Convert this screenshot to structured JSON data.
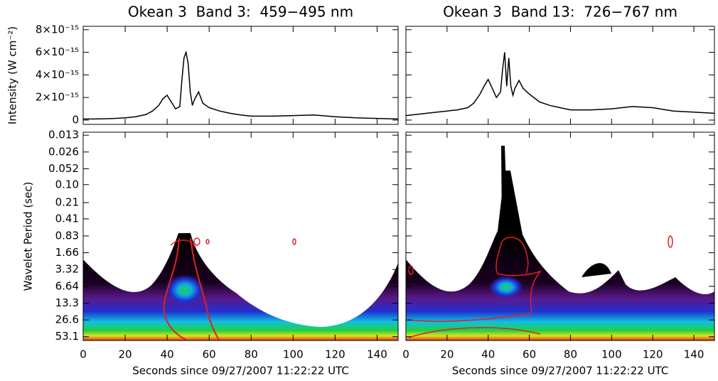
{
  "chart_data": [
    {
      "type": "line",
      "title": "Okean 3  Band 3:  459−495 nm",
      "ylabel": "Intensity (W cm⁻²)",
      "x": [
        0,
        5,
        10,
        15,
        20,
        25,
        30,
        33,
        36,
        38,
        40,
        42,
        44,
        46,
        47,
        48,
        49,
        50,
        51,
        52,
        53,
        55,
        57,
        60,
        65,
        70,
        75,
        80,
        90,
        100,
        110,
        120,
        130,
        140,
        150
      ],
      "values": [
        1e-16,
        1e-16,
        1.2e-16,
        1.5e-16,
        2e-16,
        3e-16,
        5e-16,
        8e-16,
        1.3e-15,
        1.9e-15,
        2.2e-15,
        1.6e-15,
        1e-15,
        1.2e-15,
        3.5e-15,
        5.5e-15,
        6e-15,
        5e-15,
        2.5e-15,
        1.3e-15,
        1.8e-15,
        2.5e-15,
        1.5e-15,
        1.1e-15,
        8e-16,
        6e-16,
        4.5e-16,
        3.5e-16,
        3.5e-16,
        4e-16,
        4.5e-16,
        3e-16,
        2e-16,
        1.5e-16,
        1e-16
      ],
      "color": "#000000",
      "xlim": [
        0,
        150
      ],
      "xticks": [
        0,
        20,
        40,
        60,
        80,
        100,
        120,
        140
      ],
      "ylim": [
        -3.8e-16,
        8.3e-15
      ],
      "yticks": [
        {
          "value": 0,
          "label": "0"
        },
        {
          "value": 2e-15,
          "label": "2×10⁻¹⁵"
        },
        {
          "value": 4e-15,
          "label": "4×10⁻¹⁵"
        },
        {
          "value": 6e-15,
          "label": "6×10⁻¹⁵"
        },
        {
          "value": 8e-15,
          "label": "8×10⁻¹⁵"
        }
      ]
    },
    {
      "type": "line",
      "title": "Okean 3  Band 13:  726−767 nm",
      "x": [
        0,
        5,
        10,
        15,
        20,
        25,
        30,
        33,
        36,
        38,
        40,
        42,
        44,
        46,
        47,
        48,
        49,
        50,
        51,
        52,
        53,
        55,
        57,
        60,
        65,
        70,
        75,
        80,
        90,
        100,
        110,
        120,
        130,
        140,
        150
      ],
      "values": [
        4e-16,
        5e-16,
        6e-16,
        7e-16,
        8e-16,
        9e-16,
        1.1e-15,
        1.5e-15,
        2.3e-15,
        3e-15,
        3.6e-15,
        2.8e-15,
        2e-15,
        2.5e-15,
        4.5e-15,
        6e-15,
        3e-15,
        5.5e-15,
        3e-15,
        2.2e-15,
        2.8e-15,
        3.5e-15,
        2.8e-15,
        2.3e-15,
        1.6e-15,
        1.3e-15,
        1.1e-15,
        9e-16,
        9e-16,
        1e-15,
        1.2e-15,
        1.1e-15,
        8e-16,
        7e-16,
        6e-16
      ],
      "color": "#000000",
      "xlim": [
        0,
        150
      ],
      "xticks": [
        0,
        20,
        40,
        60,
        80,
        100,
        120,
        140
      ],
      "ylim": [
        -3.8e-16,
        8.3e-15
      ]
    },
    {
      "type": "wavelet",
      "ylabel": "Wavelet Period (sec)",
      "xlabel": "Seconds since 09/27/2007 11:22:22 UTC",
      "xlim": [
        0,
        150
      ],
      "xticks": [
        0,
        20,
        40,
        60,
        80,
        100,
        120,
        140
      ],
      "log_y": true,
      "ylim": [
        62,
        0.0115
      ],
      "yticks": [
        0.013,
        0.026,
        0.052,
        {
          "value": 0.1,
          "label": "0.10"
        },
        0.21,
        0.41,
        0.83,
        1.66,
        3.32,
        6.64,
        13.3,
        26.6,
        53.1
      ]
    },
    {
      "type": "wavelet",
      "xlabel": "Seconds since 09/27/2007 11:22:22 UTC",
      "xlim": [
        0,
        150
      ],
      "xticks": [
        0,
        20,
        40,
        60,
        80,
        100,
        120,
        140
      ],
      "log_y": true,
      "ylim": [
        62,
        0.0115
      ]
    }
  ]
}
